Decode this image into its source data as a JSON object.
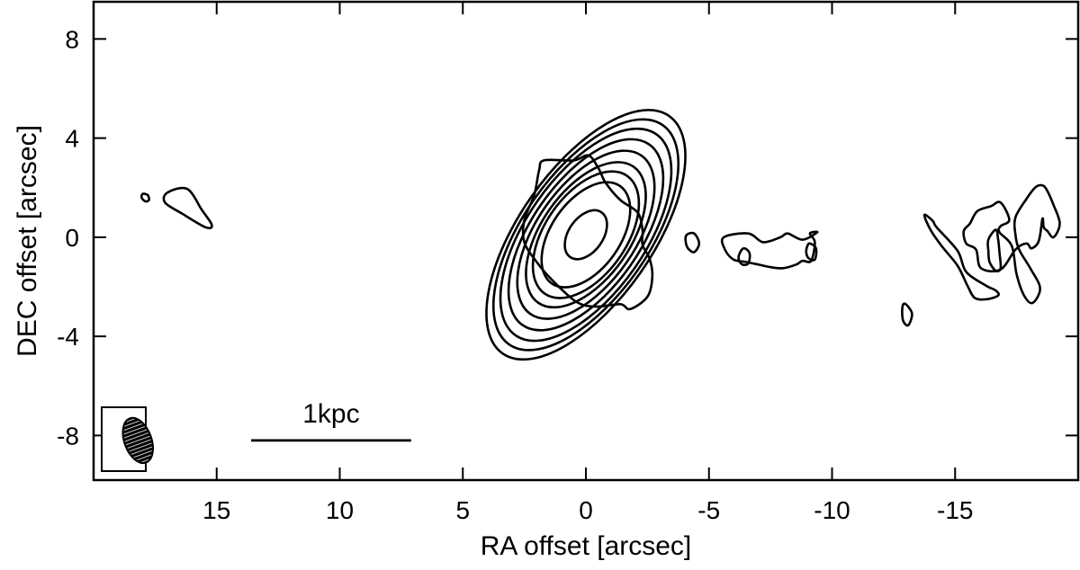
{
  "chart_data": {
    "type": "contour",
    "xlabel": "RA offset [arcsec]",
    "ylabel": "DEC offset [arcsec]",
    "xlim": [
      20,
      -20
    ],
    "ylim": [
      -9.8,
      9.5
    ],
    "x_inverted": true,
    "x_ticks": [
      {
        "value": 15,
        "label": "15"
      },
      {
        "value": 10,
        "label": "10"
      },
      {
        "value": 5,
        "label": "5"
      },
      {
        "value": 0,
        "label": "0"
      },
      {
        "value": -5,
        "label": "-5"
      },
      {
        "value": -10,
        "label": "-10"
      },
      {
        "value": -15,
        "label": "-15"
      }
    ],
    "x_minor_ticks": [
      -20
    ],
    "y_ticks": [
      {
        "value": 8,
        "label": "8"
      },
      {
        "value": 4,
        "label": "4"
      },
      {
        "value": 0,
        "label": "0"
      },
      {
        "value": -4,
        "label": "-4"
      },
      {
        "value": -8,
        "label": "-8"
      }
    ],
    "core": {
      "center": [
        0,
        0.1
      ],
      "position_angle_deg": 35,
      "levels": [
        {
          "a": 2.4,
          "b": 1.4
        },
        {
          "a": 2.9,
          "b": 1.65
        },
        {
          "a": 3.35,
          "b": 1.8
        },
        {
          "a": 3.9,
          "b": 2.0
        },
        {
          "a": 4.45,
          "b": 2.2
        },
        {
          "a": 4.95,
          "b": 2.4
        },
        {
          "a": 5.4,
          "b": 2.55
        },
        {
          "a": 5.85,
          "b": 2.7
        }
      ],
      "innermost": {
        "a": 0.55,
        "b": 0.35
      }
    },
    "contours": [
      {
        "name": "core-outer",
        "points": [
          [
            1.7,
            3.1
          ],
          [
            0.5,
            3.1
          ],
          [
            -0.1,
            3.3
          ],
          [
            -0.5,
            2.8
          ],
          [
            -0.8,
            2.2
          ],
          [
            -1.4,
            1.5
          ],
          [
            -2.1,
            1.0
          ],
          [
            -2.3,
            0.3
          ],
          [
            -2.3,
            -0.3
          ],
          [
            -2.6,
            -0.9
          ],
          [
            -2.7,
            -1.6
          ],
          [
            -2.5,
            -2.4
          ],
          [
            -1.8,
            -2.9
          ],
          [
            -1.4,
            -2.7
          ],
          [
            -0.4,
            -2.8
          ],
          [
            0.4,
            -2.6
          ],
          [
            1.4,
            -1.7
          ],
          [
            2.0,
            -1.0
          ],
          [
            2.5,
            -0.2
          ],
          [
            2.5,
            0.7
          ],
          [
            2.1,
            1.7
          ],
          [
            1.9,
            2.7
          ]
        ]
      },
      {
        "name": "east-blob",
        "points": [
          [
            17.0,
            1.8
          ],
          [
            16.2,
            1.95
          ],
          [
            15.6,
            1.1
          ],
          [
            15.2,
            0.5
          ],
          [
            15.45,
            0.4
          ],
          [
            16.4,
            0.95
          ],
          [
            17.1,
            1.4
          ]
        ]
      },
      {
        "name": "east-speck",
        "points": [
          [
            18.0,
            1.75
          ],
          [
            17.8,
            1.7
          ],
          [
            17.75,
            1.5
          ],
          [
            17.9,
            1.45
          ],
          [
            18.05,
            1.6
          ]
        ]
      },
      {
        "name": "small-1",
        "points": [
          [
            -4.1,
            0.1
          ],
          [
            -4.4,
            0.15
          ],
          [
            -4.6,
            -0.25
          ],
          [
            -4.4,
            -0.6
          ],
          [
            -4.15,
            -0.45
          ],
          [
            -4.05,
            -0.15
          ]
        ]
      },
      {
        "name": "jet-blob-outer",
        "points": [
          [
            -5.6,
            0.0
          ],
          [
            -6.6,
            0.15
          ],
          [
            -7.2,
            -0.2
          ],
          [
            -7.9,
            0.0
          ],
          [
            -8.2,
            0.15
          ],
          [
            -8.8,
            -0.1
          ],
          [
            -9.4,
            0.2
          ],
          [
            -9.1,
            0.15
          ],
          [
            -9.3,
            -0.2
          ],
          [
            -9.15,
            -0.95
          ],
          [
            -8.8,
            -0.95
          ],
          [
            -8.55,
            -1.1
          ],
          [
            -8.0,
            -1.25
          ],
          [
            -7.45,
            -1.2
          ],
          [
            -7.0,
            -1.1
          ],
          [
            -6.5,
            -1.0
          ],
          [
            -6.0,
            -0.9
          ],
          [
            -5.65,
            -0.5
          ]
        ]
      },
      {
        "name": "jet-blob-inner-a",
        "points": [
          [
            -6.3,
            -0.55
          ],
          [
            -6.45,
            -0.45
          ],
          [
            -6.65,
            -0.65
          ],
          [
            -6.6,
            -1.05
          ],
          [
            -6.35,
            -1.1
          ],
          [
            -6.2,
            -0.85
          ]
        ]
      },
      {
        "name": "jet-blob-inner-b",
        "points": [
          [
            -9.0,
            -0.35
          ],
          [
            -9.1,
            -0.25
          ],
          [
            -9.35,
            -0.45
          ],
          [
            -9.3,
            -0.9
          ],
          [
            -9.05,
            -0.85
          ],
          [
            -8.95,
            -0.6
          ]
        ]
      },
      {
        "name": "small-2",
        "points": [
          [
            -12.9,
            -2.7
          ],
          [
            -13.05,
            -2.75
          ],
          [
            -13.25,
            -3.1
          ],
          [
            -13.1,
            -3.55
          ],
          [
            -12.9,
            -3.4
          ],
          [
            -12.85,
            -3.0
          ]
        ]
      },
      {
        "name": "west-blob-outer",
        "points": [
          [
            -13.75,
            0.9
          ],
          [
            -14.1,
            0.65
          ],
          [
            -14.25,
            0.4
          ],
          [
            -15.1,
            -0.55
          ],
          [
            -15.45,
            -1.4
          ],
          [
            -16.25,
            -1.95
          ],
          [
            -16.65,
            -2.15
          ],
          [
            -16.75,
            -2.35
          ],
          [
            -16.3,
            -2.5
          ],
          [
            -15.8,
            -2.45
          ],
          [
            -15.5,
            -1.95
          ],
          [
            -15.1,
            -1.15
          ],
          [
            -14.45,
            -0.35
          ],
          [
            -14.0,
            0.3
          ]
        ]
      },
      {
        "name": "west-blob-2",
        "points": [
          [
            -15.6,
            0.55
          ],
          [
            -15.9,
            1.05
          ],
          [
            -16.45,
            1.25
          ],
          [
            -16.85,
            1.4
          ],
          [
            -17.2,
            0.7
          ],
          [
            -16.85,
            0.45
          ],
          [
            -16.8,
            0.2
          ],
          [
            -17.3,
            -0.35
          ],
          [
            -17.5,
            -1.5
          ],
          [
            -17.8,
            -2.35
          ],
          [
            -18.15,
            -2.65
          ],
          [
            -18.45,
            -2.05
          ],
          [
            -18.05,
            -1.25
          ],
          [
            -17.6,
            -0.5
          ],
          [
            -17.45,
            0.1
          ],
          [
            -17.45,
            0.8
          ],
          [
            -17.9,
            1.55
          ],
          [
            -18.25,
            2.0
          ],
          [
            -18.5,
            2.1
          ],
          [
            -18.7,
            1.95
          ],
          [
            -19.0,
            1.3
          ],
          [
            -19.25,
            0.55
          ],
          [
            -19.0,
            0.0
          ],
          [
            -18.75,
            0.25
          ],
          [
            -18.6,
            0.4
          ],
          [
            -18.55,
            0.75
          ],
          [
            -18.4,
            -0.15
          ],
          [
            -18.1,
            -0.45
          ],
          [
            -17.9,
            -0.25
          ],
          [
            -17.45,
            -0.5
          ],
          [
            -16.85,
            -1.3
          ],
          [
            -16.05,
            -1.25
          ],
          [
            -15.85,
            -0.5
          ],
          [
            -15.45,
            -0.25
          ],
          [
            -15.35,
            0.25
          ]
        ]
      },
      {
        "name": "west-blob-hole",
        "points": [
          [
            -16.65,
            0.3
          ],
          [
            -16.75,
            -0.1
          ],
          [
            -16.8,
            -0.6
          ],
          [
            -16.85,
            -1.25
          ],
          [
            -16.65,
            -1.35
          ],
          [
            -16.4,
            -1.0
          ],
          [
            -16.35,
            -0.55
          ],
          [
            -16.35,
            -0.1
          ]
        ]
      }
    ],
    "beam": {
      "center": [
        18.2,
        -8.2
      ],
      "a": 0.95,
      "b": 0.55,
      "position_angle_deg": 20
    },
    "scalebar": {
      "label": "1kpc",
      "x_from": 13.6,
      "x_to": 7.1,
      "y": -8.2
    }
  }
}
